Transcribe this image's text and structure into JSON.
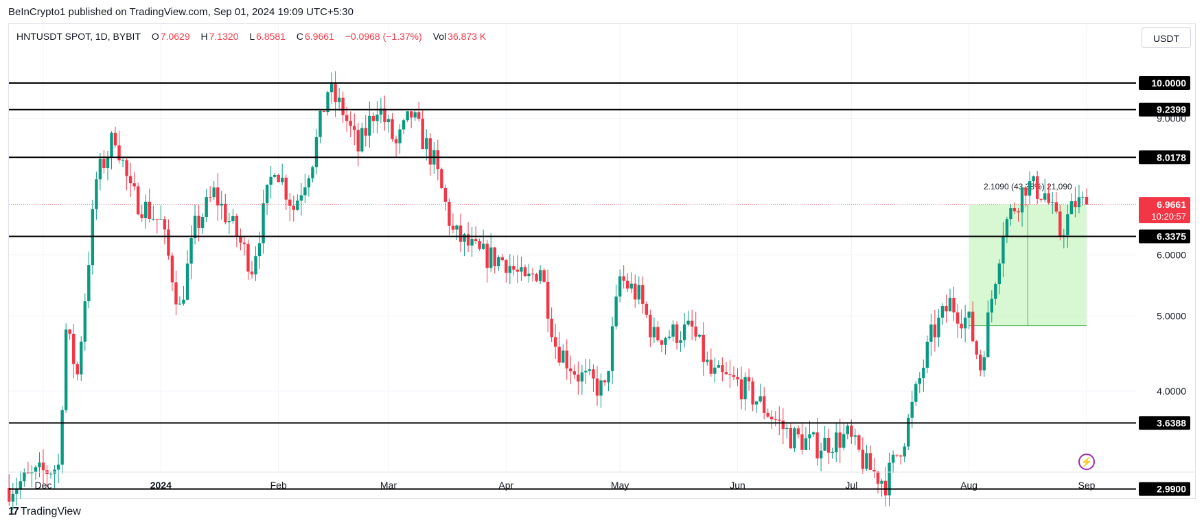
{
  "header": {
    "publisher": "BeInCrypto1 published on TradingView.com, Sep 01, 2024 19:09 UTC+5:30"
  },
  "legend": {
    "symbol": "HNTUSDT SPOT, 1D, BYBIT",
    "open_label": "O",
    "open": "7.0629",
    "high_label": "H",
    "high": "7.1320",
    "low_label": "L",
    "low": "6.8581",
    "close_label": "C",
    "close": "6.9661",
    "change": "−0.0968 (−1.37%)",
    "vol_label": "Vol",
    "vol": "36.873 K"
  },
  "currency_button": "USDT",
  "footer": {
    "brand": "TradingView"
  },
  "colors": {
    "up": "#089981",
    "down": "#f23645",
    "line": "#000000",
    "grid": "#f0f3fa",
    "box_fill": "#c8f5c0",
    "box_stroke": "#4caf50"
  },
  "chart_data": {
    "type": "candlestick",
    "symbol": "HNTUSDT SPOT",
    "interval": "1D",
    "exchange": "BYBIT",
    "y_axis_scale": "log",
    "ylim": [
      2.8,
      12.8
    ],
    "x_tick_labels": [
      "Dec",
      "2024",
      "Feb",
      "Mar",
      "Apr",
      "May",
      "Jun",
      "Jul",
      "Aug",
      "Sep"
    ],
    "y_tick_labels": [
      "4.0000",
      "5.0000",
      "6.0000",
      "9.0000"
    ],
    "horizontal_levels": [
      "10.0000",
      "9.2399",
      "8.0178",
      "6.3375",
      "3.6388",
      "2.9900"
    ],
    "last_price": "6.9661",
    "countdown": "10:20:57",
    "measure_label": "2.1090 (43.38%) 21,090",
    "measure_box": {
      "low": 4.86,
      "high": 6.9661,
      "start": "Aug 01",
      "end": "Sep 01"
    },
    "path_anchors": [
      [
        "Nov 22",
        3.0
      ],
      [
        "Nov 28",
        3.1
      ],
      [
        "Dec 05",
        3.2
      ],
      [
        "Dec 07",
        4.8
      ],
      [
        "Dec 10",
        4.2
      ],
      [
        "Dec 15",
        7.5
      ],
      [
        "Dec 20",
        8.6
      ],
      [
        "Dec 24",
        7.2
      ],
      [
        "Jan 01",
        6.6
      ],
      [
        "Jan 06",
        5.1
      ],
      [
        "Jan 10",
        6.5
      ],
      [
        "Jan 15",
        7.2
      ],
      [
        "Jan 20",
        6.5
      ],
      [
        "Jan 25",
        5.8
      ],
      [
        "Jan 31",
        7.9
      ],
      [
        "Feb 05",
        6.9
      ],
      [
        "Feb 10",
        8.0
      ],
      [
        "Feb 14",
        9.8
      ],
      [
        "Feb 18",
        9.2
      ],
      [
        "Feb 22",
        8.2
      ],
      [
        "Feb 27",
        9.4
      ],
      [
        "Mar 03",
        8.3
      ],
      [
        "Mar 07",
        9.1
      ],
      [
        "Mar 13",
        7.9
      ],
      [
        "Mar 18",
        6.4
      ],
      [
        "Mar 25",
        6.0
      ],
      [
        "Apr 01",
        5.9
      ],
      [
        "Apr 06",
        5.5
      ],
      [
        "Apr 10",
        5.8
      ],
      [
        "Apr 14",
        4.6
      ],
      [
        "Apr 20",
        4.2
      ],
      [
        "Apr 27",
        4.0
      ],
      [
        "May 01",
        5.6
      ],
      [
        "May 06",
        5.3
      ],
      [
        "May 10",
        4.7
      ],
      [
        "May 20",
        4.8
      ],
      [
        "May 25",
        4.2
      ],
      [
        "Jun 01",
        4.1
      ],
      [
        "Jun 06",
        3.9
      ],
      [
        "Jun 15",
        3.5
      ],
      [
        "Jun 22",
        3.4
      ],
      [
        "Jun 30",
        3.5
      ],
      [
        "Jul 05",
        3.2
      ],
      [
        "Jul 10",
        3.05
      ],
      [
        "Jul 15",
        3.5
      ],
      [
        "Jul 22",
        4.7
      ],
      [
        "Jul 27",
        5.2
      ],
      [
        "Aug 01",
        4.9
      ],
      [
        "Aug 04",
        4.3
      ],
      [
        "Aug 10",
        6.5
      ],
      [
        "Aug 16",
        7.4
      ],
      [
        "Aug 21",
        7.2
      ],
      [
        "Aug 25",
        6.4
      ],
      [
        "Aug 29",
        7.0
      ],
      [
        "Sep 01",
        6.9661
      ]
    ]
  }
}
